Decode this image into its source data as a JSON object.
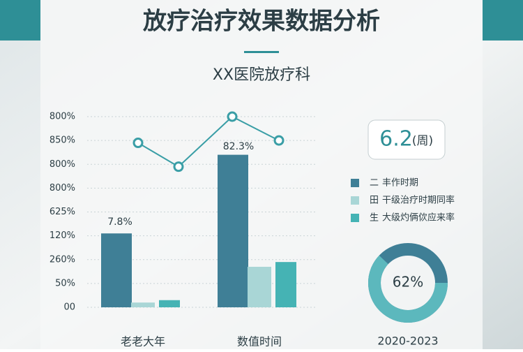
{
  "header": {
    "title": "放疗治疗效果数据分析",
    "subtitle": "XX医院放疗科"
  },
  "kpi": {
    "value": "6.2",
    "unit": "(周)"
  },
  "chart_data": [
    {
      "type": "bar",
      "categories": [
        "老老大年",
        "数值时间"
      ],
      "ylim": [
        0,
        8
      ],
      "yticks": [
        {
          "value": 0,
          "label": "00"
        },
        {
          "value": 1,
          "label": "50%"
        },
        {
          "value": 2,
          "label": "260%"
        },
        {
          "value": 3,
          "label": "120%"
        },
        {
          "value": 4,
          "label": "625%"
        },
        {
          "value": 5,
          "label": "800%"
        },
        {
          "value": 6,
          "label": "800%"
        },
        {
          "value": 7,
          "label": "850%"
        },
        {
          "value": 8,
          "label": "800%"
        }
      ],
      "grid": true,
      "series": [
        {
          "name": "丰作时期",
          "marker_label": "二",
          "color": "#3f7f96",
          "values": [
            3.1,
            6.4
          ]
        },
        {
          "name": "干级治疗时期同率",
          "marker_label": "田",
          "color": "#a9d6d6",
          "values": [
            0.2,
            1.7
          ]
        },
        {
          "name": "大级灼俩佽应来率",
          "marker_label": "生",
          "color": "#45b3b4",
          "values": [
            0.3,
            1.9
          ]
        }
      ],
      "line": {
        "color": "#3a9ea6",
        "values": [
          6.9,
          5.9,
          8.0,
          7.0
        ]
      },
      "annotations": [
        "7.8%",
        "82.3%"
      ]
    },
    {
      "type": "donut",
      "title": "2020-2023",
      "values": [
        62
      ],
      "value_labels": [
        "62%"
      ],
      "color": "#5cb8bd",
      "rest_color": "#3f7f96"
    }
  ]
}
